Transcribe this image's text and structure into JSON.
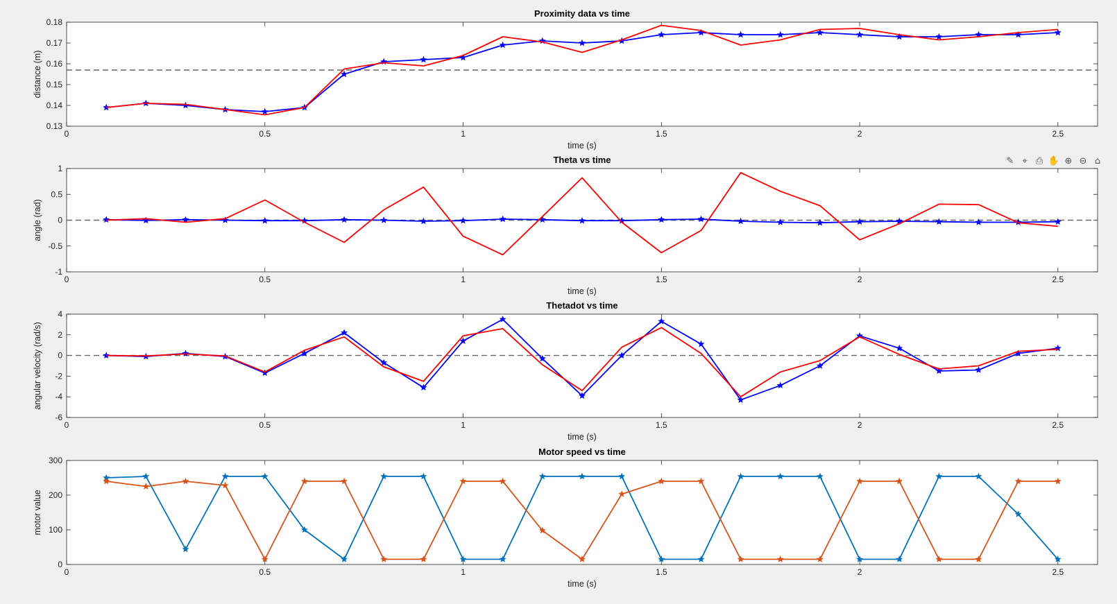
{
  "figure": {
    "background": "#f0f0f0"
  },
  "toolbar": {
    "icons": [
      "brush-icon",
      "data-tips-icon",
      "export-icon",
      "pan-hand-icon",
      "zoom-in-icon",
      "zoom-out-icon",
      "home-icon"
    ]
  },
  "chart_data": [
    {
      "type": "line",
      "title": "Proximity data vs time",
      "xlabel": "time (s)",
      "ylabel": "distance (m)",
      "xlim": [
        0,
        2.6
      ],
      "ylim": [
        0.13,
        0.18
      ],
      "xticks": [
        "0",
        "0.5",
        "1",
        "1.5",
        "2",
        "2.5"
      ],
      "yticks": [
        "0.13",
        "0.14",
        "0.15",
        "0.16",
        "0.17",
        "0.18"
      ],
      "x": [
        0.1,
        0.2,
        0.3,
        0.4,
        0.5,
        0.6,
        0.7,
        0.8,
        0.9,
        1.0,
        1.1,
        1.2,
        1.3,
        1.4,
        1.5,
        1.6,
        1.7,
        1.8,
        1.9,
        2.0,
        2.1,
        2.2,
        2.3,
        2.4,
        2.5
      ],
      "series": [
        {
          "color": "#0000ff",
          "marker": "*",
          "values": [
            0.139,
            0.141,
            0.14,
            0.138,
            0.137,
            0.139,
            0.155,
            0.161,
            0.162,
            0.163,
            0.169,
            0.171,
            0.17,
            0.171,
            0.174,
            0.175,
            0.174,
            0.174,
            0.175,
            0.174,
            0.173,
            0.173,
            0.174,
            0.174,
            0.175
          ]
        },
        {
          "color": "#ff0000",
          "marker": "none",
          "values": [
            0.139,
            0.141,
            0.1405,
            0.138,
            0.1355,
            0.139,
            0.1575,
            0.1605,
            0.159,
            0.164,
            0.173,
            0.1705,
            0.1655,
            0.1715,
            0.1785,
            0.176,
            0.169,
            0.1715,
            0.1765,
            0.177,
            0.174,
            0.1715,
            0.173,
            0.175,
            0.1765
          ]
        }
      ],
      "reference_line": {
        "y": 0.157,
        "style": "dashed",
        "color": "#666666"
      }
    },
    {
      "type": "line",
      "title": "Theta vs time",
      "xlabel": "time (s)",
      "ylabel": "angle (rad)",
      "xlim": [
        0,
        2.6
      ],
      "ylim": [
        -1,
        1
      ],
      "xticks": [
        "0",
        "0.5",
        "1",
        "1.5",
        "2",
        "2.5"
      ],
      "yticks": [
        "-1",
        "-0.5",
        "0",
        "0.5",
        "1"
      ],
      "x": [
        0.1,
        0.2,
        0.3,
        0.4,
        0.5,
        0.6,
        0.7,
        0.8,
        0.9,
        1.0,
        1.1,
        1.2,
        1.3,
        1.4,
        1.5,
        1.6,
        1.7,
        1.8,
        1.9,
        2.0,
        2.1,
        2.2,
        2.3,
        2.4,
        2.5
      ],
      "series": [
        {
          "color": "#0000ff",
          "marker": "*",
          "values": [
            0.01,
            -0.005,
            0.01,
            0.0,
            -0.01,
            -0.01,
            0.01,
            0.0,
            -0.02,
            -0.01,
            0.02,
            0.01,
            -0.01,
            -0.01,
            0.01,
            0.02,
            -0.02,
            -0.04,
            -0.05,
            -0.03,
            -0.02,
            -0.03,
            -0.04,
            -0.04,
            -0.03
          ]
        },
        {
          "color": "#ff0000",
          "marker": "none",
          "values": [
            0.0,
            0.03,
            -0.04,
            0.03,
            0.39,
            -0.04,
            -0.43,
            0.2,
            0.64,
            -0.31,
            -0.67,
            0.07,
            0.82,
            -0.04,
            -0.63,
            -0.2,
            0.92,
            0.56,
            0.28,
            -0.38,
            -0.07,
            0.31,
            0.3,
            -0.05,
            -0.12
          ]
        }
      ],
      "reference_line": {
        "y": 0,
        "style": "dashed",
        "color": "#666666"
      }
    },
    {
      "type": "line",
      "title": "Thetadot vs time",
      "xlabel": "time (s)",
      "ylabel": "angular velocity (rad/s)",
      "xlim": [
        0,
        2.6
      ],
      "ylim": [
        -6,
        4
      ],
      "xticks": [
        "0",
        "0.5",
        "1",
        "1.5",
        "2",
        "2.5"
      ],
      "yticks": [
        "-6",
        "-4",
        "-2",
        "0",
        "2",
        "4"
      ],
      "x": [
        0.1,
        0.2,
        0.3,
        0.4,
        0.5,
        0.6,
        0.7,
        0.8,
        0.9,
        1.0,
        1.1,
        1.2,
        1.3,
        1.4,
        1.5,
        1.6,
        1.7,
        1.8,
        1.9,
        2.0,
        2.1,
        2.2,
        2.3,
        2.4,
        2.5
      ],
      "series": [
        {
          "color": "#0000ff",
          "marker": "*",
          "values": [
            0.0,
            -0.1,
            0.2,
            -0.1,
            -1.7,
            0.2,
            2.2,
            -0.7,
            -3.1,
            1.4,
            3.5,
            -0.3,
            -3.9,
            0.0,
            3.3,
            1.1,
            -4.3,
            -2.9,
            -1.0,
            1.9,
            0.7,
            -1.5,
            -1.4,
            0.2,
            0.7
          ]
        },
        {
          "color": "#ff0000",
          "marker": "none",
          "values": [
            0.0,
            -0.05,
            0.15,
            -0.05,
            -1.6,
            0.5,
            1.8,
            -1.1,
            -2.5,
            1.9,
            2.6,
            -0.9,
            -3.4,
            0.8,
            2.7,
            0.2,
            -4.0,
            -1.6,
            -0.5,
            1.8,
            0.1,
            -1.3,
            -1.0,
            0.4,
            0.6
          ]
        }
      ],
      "reference_line": {
        "y": 0,
        "style": "dashed",
        "color": "#666666"
      }
    },
    {
      "type": "line",
      "title": "Motor speed vs time",
      "xlabel": "time (s)",
      "ylabel": "motor value",
      "xlim": [
        0,
        2.6
      ],
      "ylim": [
        0,
        300
      ],
      "xticks": [
        "0",
        "0.5",
        "1",
        "1.5",
        "2",
        "2.5"
      ],
      "yticks": [
        "0",
        "100",
        "200",
        "300"
      ],
      "x": [
        0.1,
        0.2,
        0.3,
        0.4,
        0.5,
        0.6,
        0.7,
        0.8,
        0.9,
        1.0,
        1.1,
        1.2,
        1.3,
        1.4,
        1.5,
        1.6,
        1.7,
        1.8,
        1.9,
        2.0,
        2.1,
        2.2,
        2.3,
        2.4,
        2.5
      ],
      "series": [
        {
          "color": "#0072bd",
          "marker": "*",
          "values": [
            250,
            254,
            44,
            254,
            254,
            100,
            15,
            254,
            254,
            15,
            15,
            254,
            254,
            254,
            15,
            15,
            254,
            254,
            254,
            15,
            15,
            254,
            254,
            145,
            15
          ]
        },
        {
          "color": "#d95319",
          "marker": "*",
          "values": [
            240,
            225,
            240,
            228,
            15,
            240,
            240,
            15,
            15,
            240,
            240,
            98,
            15,
            203,
            240,
            240,
            15,
            15,
            15,
            240,
            240,
            15,
            15,
            240,
            240
          ]
        }
      ]
    }
  ]
}
